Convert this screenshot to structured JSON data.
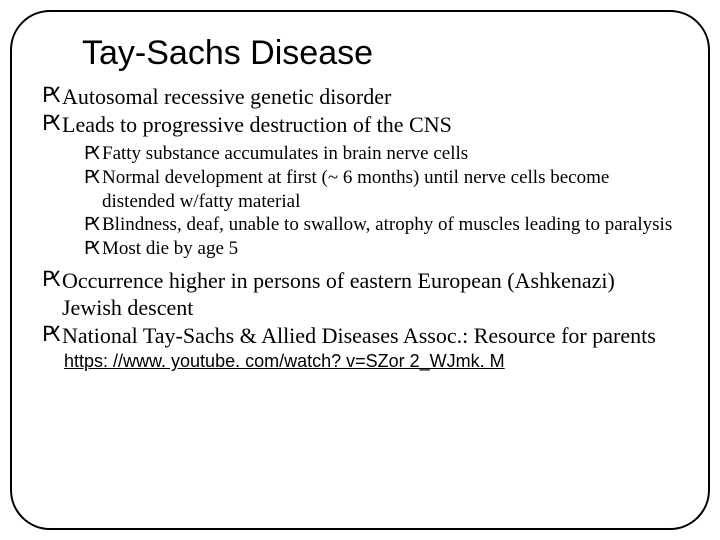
{
  "slide": {
    "title": "Tay-Sachs Disease",
    "title_fontsize": 34,
    "title_font": "Arial",
    "body_font": "Georgia",
    "border_radius": 40,
    "border_color": "#000000",
    "background_color": "#ffffff",
    "bullet_glyph": "Ԗ",
    "bullets": [
      {
        "text": "Autosomal recessive genetic disorder"
      },
      {
        "text": "Leads to progressive destruction of the CNS",
        "children": [
          {
            "text": "Fatty substance accumulates in brain nerve cells"
          },
          {
            "text": "Normal development at first (~ 6 months) until nerve cells become distended w/fatty material"
          },
          {
            "text": "Blindness, deaf, unable to swallow, atrophy of muscles leading to paralysis"
          },
          {
            "text": "Most die by age 5"
          }
        ]
      },
      {
        "text": "Occurrence higher in persons of eastern European (Ashkenazi) Jewish descent"
      },
      {
        "text": "National Tay-Sachs & Allied Diseases Assoc.: Resource for parents"
      }
    ],
    "link": "https: //www. youtube. com/watch? v=SZor 2_WJmk. M"
  }
}
